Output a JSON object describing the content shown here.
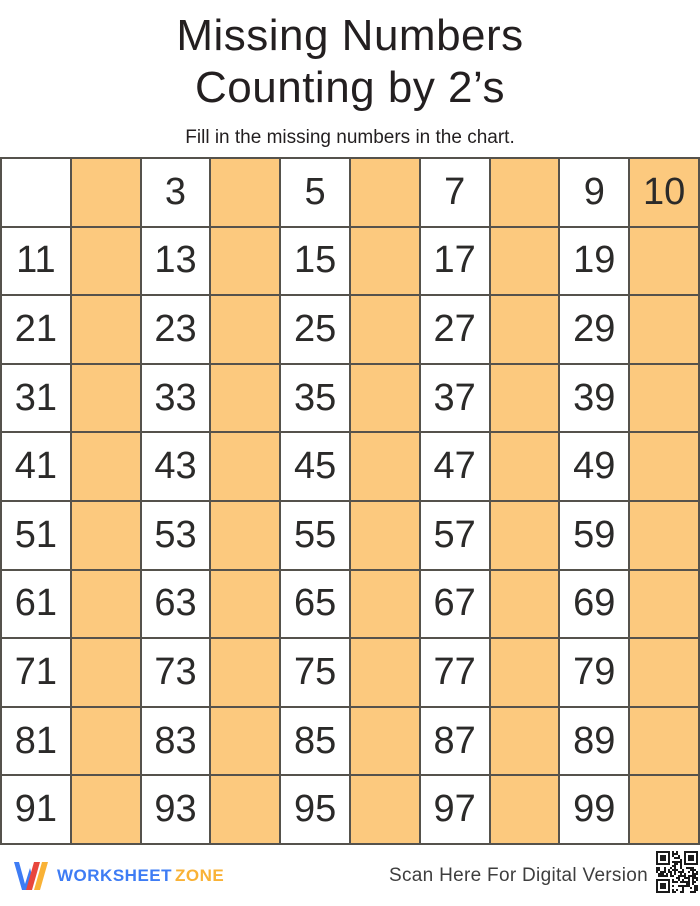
{
  "header": {
    "title_line1": "Missing Numbers",
    "title_line2": "Counting by 2’s",
    "subtitle": "Fill in the missing numbers in the chart."
  },
  "grid": {
    "rows": [
      [
        "",
        "",
        "3",
        "",
        "5",
        "",
        "7",
        "",
        "9",
        "10"
      ],
      [
        "11",
        "",
        "13",
        "",
        "15",
        "",
        "17",
        "",
        "19",
        ""
      ],
      [
        "21",
        "",
        "23",
        "",
        "25",
        "",
        "27",
        "",
        "29",
        ""
      ],
      [
        "31",
        "",
        "33",
        "",
        "35",
        "",
        "37",
        "",
        "39",
        ""
      ],
      [
        "41",
        "",
        "43",
        "",
        "45",
        "",
        "47",
        "",
        "49",
        ""
      ],
      [
        "51",
        "",
        "53",
        "",
        "55",
        "",
        "57",
        "",
        "59",
        ""
      ],
      [
        "61",
        "",
        "63",
        "",
        "65",
        "",
        "67",
        "",
        "69",
        ""
      ],
      [
        "71",
        "",
        "73",
        "",
        "75",
        "",
        "77",
        "",
        "79",
        ""
      ],
      [
        "81",
        "",
        "83",
        "",
        "85",
        "",
        "87",
        "",
        "89",
        ""
      ],
      [
        "91",
        "",
        "93",
        "",
        "95",
        "",
        "97",
        "",
        "99",
        ""
      ]
    ],
    "shaded_columns": [
      2,
      4,
      6,
      8,
      10
    ],
    "colors": {
      "shaded_cell": "#fcc97e",
      "unshaded_cell": "#ffffff",
      "grid_line": "#55524c",
      "number": "#2b2a29"
    }
  },
  "footer": {
    "brand_part1": "WORKSHEET",
    "brand_part2": "ZONE",
    "brand_colors": {
      "blue": "#3e7cf4",
      "amber": "#f9b236",
      "red": "#e8463c"
    },
    "scan_text": "Scan Here For Digital Version"
  }
}
